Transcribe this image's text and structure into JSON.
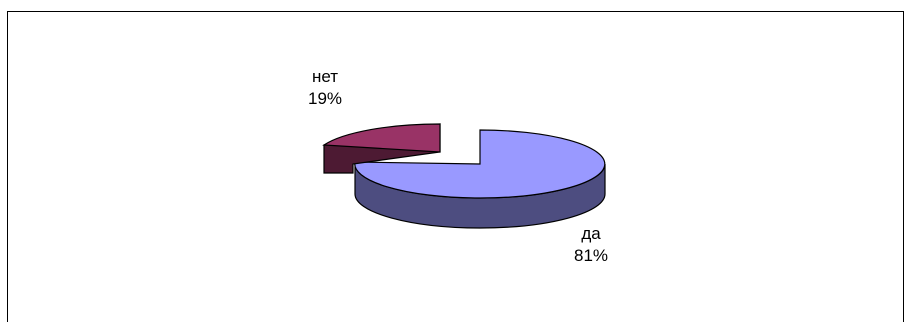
{
  "chart_data": {
    "type": "pie",
    "style": "3d-exploded",
    "slices": [
      {
        "label": "да",
        "value": 81,
        "value_label": "81%",
        "color": "#9999ff",
        "side_color": "#4d4d80"
      },
      {
        "label": "нет",
        "value": 19,
        "value_label": "19%",
        "color": "#993366",
        "side_color": "#4d1a33"
      }
    ],
    "legend": "none"
  }
}
